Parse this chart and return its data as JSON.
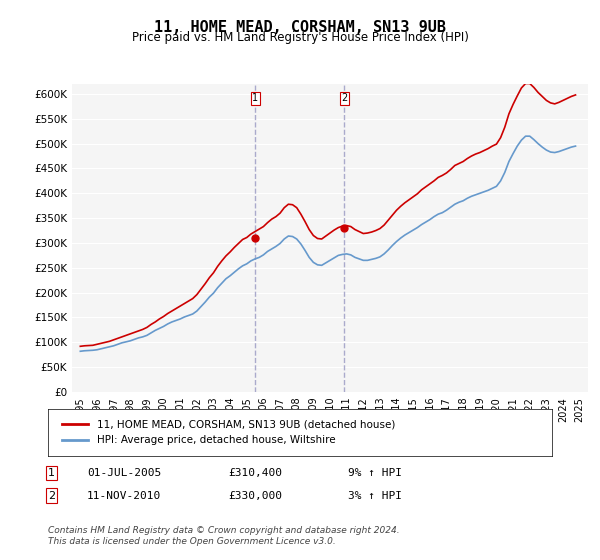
{
  "title": "11, HOME MEAD, CORSHAM, SN13 9UB",
  "subtitle": "Price paid vs. HM Land Registry's House Price Index (HPI)",
  "ylabel_ticks": [
    "£0",
    "£50K",
    "£100K",
    "£150K",
    "£200K",
    "£250K",
    "£300K",
    "£350K",
    "£400K",
    "£450K",
    "£500K",
    "£550K",
    "£600K"
  ],
  "ylim": [
    0,
    620000
  ],
  "ytick_values": [
    0,
    50000,
    100000,
    150000,
    200000,
    250000,
    300000,
    350000,
    400000,
    450000,
    500000,
    550000,
    600000
  ],
  "x_years": [
    1995,
    1996,
    1997,
    1998,
    1999,
    2000,
    2001,
    2002,
    2003,
    2004,
    2005,
    2006,
    2007,
    2008,
    2009,
    2010,
    2011,
    2012,
    2013,
    2014,
    2015,
    2016,
    2017,
    2018,
    2019,
    2020,
    2021,
    2022,
    2023,
    2024,
    2025
  ],
  "xlim_min": 1994.5,
  "xlim_max": 2025.5,
  "hpi_color": "#6699cc",
  "price_color": "#cc0000",
  "marker1_color": "#cc0000",
  "marker2_color": "#cc0000",
  "vline1_x": 2005.5,
  "vline2_x": 2010.85,
  "vline_color": "#aaaacc",
  "marker1_label": "1",
  "marker2_label": "2",
  "marker1_y": 310400,
  "marker2_y": 330000,
  "legend_line1": "11, HOME MEAD, CORSHAM, SN13 9UB (detached house)",
  "legend_line2": "HPI: Average price, detached house, Wiltshire",
  "annotation1_num": "1",
  "annotation1_date": "01-JUL-2005",
  "annotation1_price": "£310,400",
  "annotation1_hpi": "9% ↑ HPI",
  "annotation2_num": "2",
  "annotation2_date": "11-NOV-2010",
  "annotation2_price": "£330,000",
  "annotation2_hpi": "3% ↑ HPI",
  "footer": "Contains HM Land Registry data © Crown copyright and database right 2024.\nThis data is licensed under the Open Government Licence v3.0.",
  "background_color": "#ffffff",
  "plot_bg_color": "#f5f5f5",
  "hpi_data_x": [
    1995.0,
    1995.25,
    1995.5,
    1995.75,
    1996.0,
    1996.25,
    1996.5,
    1996.75,
    1997.0,
    1997.25,
    1997.5,
    1997.75,
    1998.0,
    1998.25,
    1998.5,
    1998.75,
    1999.0,
    1999.25,
    1999.5,
    1999.75,
    2000.0,
    2000.25,
    2000.5,
    2000.75,
    2001.0,
    2001.25,
    2001.5,
    2001.75,
    2002.0,
    2002.25,
    2002.5,
    2002.75,
    2003.0,
    2003.25,
    2003.5,
    2003.75,
    2004.0,
    2004.25,
    2004.5,
    2004.75,
    2005.0,
    2005.25,
    2005.5,
    2005.75,
    2006.0,
    2006.25,
    2006.5,
    2006.75,
    2007.0,
    2007.25,
    2007.5,
    2007.75,
    2008.0,
    2008.25,
    2008.5,
    2008.75,
    2009.0,
    2009.25,
    2009.5,
    2009.75,
    2010.0,
    2010.25,
    2010.5,
    2010.75,
    2011.0,
    2011.25,
    2011.5,
    2011.75,
    2012.0,
    2012.25,
    2012.5,
    2012.75,
    2013.0,
    2013.25,
    2013.5,
    2013.75,
    2014.0,
    2014.25,
    2014.5,
    2014.75,
    2015.0,
    2015.25,
    2015.5,
    2015.75,
    2016.0,
    2016.25,
    2016.5,
    2016.75,
    2017.0,
    2017.25,
    2017.5,
    2017.75,
    2018.0,
    2018.25,
    2018.5,
    2018.75,
    2019.0,
    2019.25,
    2019.5,
    2019.75,
    2020.0,
    2020.25,
    2020.5,
    2020.75,
    2021.0,
    2021.25,
    2021.5,
    2021.75,
    2022.0,
    2022.25,
    2022.5,
    2022.75,
    2023.0,
    2023.25,
    2023.5,
    2023.75,
    2024.0,
    2024.25,
    2024.5,
    2024.75
  ],
  "hpi_data_y": [
    82000,
    83000,
    83500,
    84000,
    85000,
    87000,
    89000,
    91000,
    93000,
    96000,
    99000,
    101000,
    103000,
    106000,
    109000,
    111000,
    114000,
    119000,
    124000,
    128000,
    132000,
    137000,
    141000,
    144000,
    147000,
    151000,
    154000,
    157000,
    163000,
    172000,
    181000,
    191000,
    199000,
    210000,
    219000,
    228000,
    234000,
    241000,
    248000,
    254000,
    258000,
    264000,
    268000,
    271000,
    276000,
    283000,
    288000,
    293000,
    299000,
    308000,
    314000,
    313000,
    308000,
    298000,
    285000,
    271000,
    261000,
    256000,
    255000,
    260000,
    265000,
    270000,
    275000,
    277000,
    278000,
    276000,
    271000,
    268000,
    265000,
    265000,
    267000,
    269000,
    272000,
    278000,
    286000,
    295000,
    303000,
    310000,
    316000,
    321000,
    326000,
    331000,
    337000,
    342000,
    347000,
    353000,
    358000,
    361000,
    366000,
    372000,
    378000,
    382000,
    385000,
    390000,
    394000,
    397000,
    400000,
    403000,
    406000,
    410000,
    414000,
    425000,
    442000,
    464000,
    480000,
    495000,
    507000,
    515000,
    515000,
    508000,
    500000,
    493000,
    487000,
    483000,
    482000,
    484000,
    487000,
    490000,
    493000,
    495000
  ],
  "price_data_x": [
    1995.0,
    1995.25,
    1995.5,
    1995.75,
    1996.0,
    1996.25,
    1996.5,
    1996.75,
    1997.0,
    1997.25,
    1997.5,
    1997.75,
    1998.0,
    1998.25,
    1998.5,
    1998.75,
    1999.0,
    1999.25,
    1999.5,
    1999.75,
    2000.0,
    2000.25,
    2000.5,
    2000.75,
    2001.0,
    2001.25,
    2001.5,
    2001.75,
    2002.0,
    2002.25,
    2002.5,
    2002.75,
    2003.0,
    2003.25,
    2003.5,
    2003.75,
    2004.0,
    2004.25,
    2004.5,
    2004.75,
    2005.0,
    2005.25,
    2005.5,
    2005.75,
    2006.0,
    2006.25,
    2006.5,
    2006.75,
    2007.0,
    2007.25,
    2007.5,
    2007.75,
    2008.0,
    2008.25,
    2008.5,
    2008.75,
    2009.0,
    2009.25,
    2009.5,
    2009.75,
    2010.0,
    2010.25,
    2010.5,
    2010.75,
    2011.0,
    2011.25,
    2011.5,
    2011.75,
    2012.0,
    2012.25,
    2012.5,
    2012.75,
    2013.0,
    2013.25,
    2013.5,
    2013.75,
    2014.0,
    2014.25,
    2014.5,
    2014.75,
    2015.0,
    2015.25,
    2015.5,
    2015.75,
    2016.0,
    2016.25,
    2016.5,
    2016.75,
    2017.0,
    2017.25,
    2017.5,
    2017.75,
    2018.0,
    2018.25,
    2018.5,
    2018.75,
    2019.0,
    2019.25,
    2019.5,
    2019.75,
    2020.0,
    2020.25,
    2020.5,
    2020.75,
    2021.0,
    2021.25,
    2021.5,
    2021.75,
    2022.0,
    2022.25,
    2022.5,
    2022.75,
    2023.0,
    2023.25,
    2023.5,
    2023.75,
    2024.0,
    2024.25,
    2024.5,
    2024.75
  ],
  "price_data_y": [
    92000,
    93000,
    93500,
    94000,
    96000,
    98000,
    100000,
    102000,
    105000,
    108000,
    111000,
    114000,
    117000,
    120000,
    123000,
    126000,
    130000,
    136000,
    141000,
    147000,
    152000,
    158000,
    163000,
    168000,
    173000,
    178000,
    183000,
    188000,
    196000,
    207000,
    218000,
    230000,
    240000,
    253000,
    264000,
    274000,
    282000,
    291000,
    299000,
    307000,
    311000,
    318000,
    323000,
    328000,
    333000,
    341000,
    348000,
    353000,
    360000,
    371000,
    378000,
    377000,
    371000,
    358000,
    343000,
    327000,
    315000,
    309000,
    308000,
    314000,
    320000,
    326000,
    331000,
    334000,
    335000,
    333000,
    327000,
    323000,
    319000,
    320000,
    322000,
    325000,
    329000,
    336000,
    346000,
    356000,
    366000,
    374000,
    381000,
    387000,
    393000,
    399000,
    407000,
    413000,
    419000,
    425000,
    432000,
    436000,
    441000,
    448000,
    456000,
    460000,
    464000,
    470000,
    475000,
    479000,
    482000,
    486000,
    490000,
    495000,
    499000,
    512000,
    533000,
    560000,
    579000,
    596000,
    612000,
    621000,
    621000,
    613000,
    603000,
    595000,
    587000,
    582000,
    580000,
    583000,
    587000,
    591000,
    595000,
    598000
  ]
}
